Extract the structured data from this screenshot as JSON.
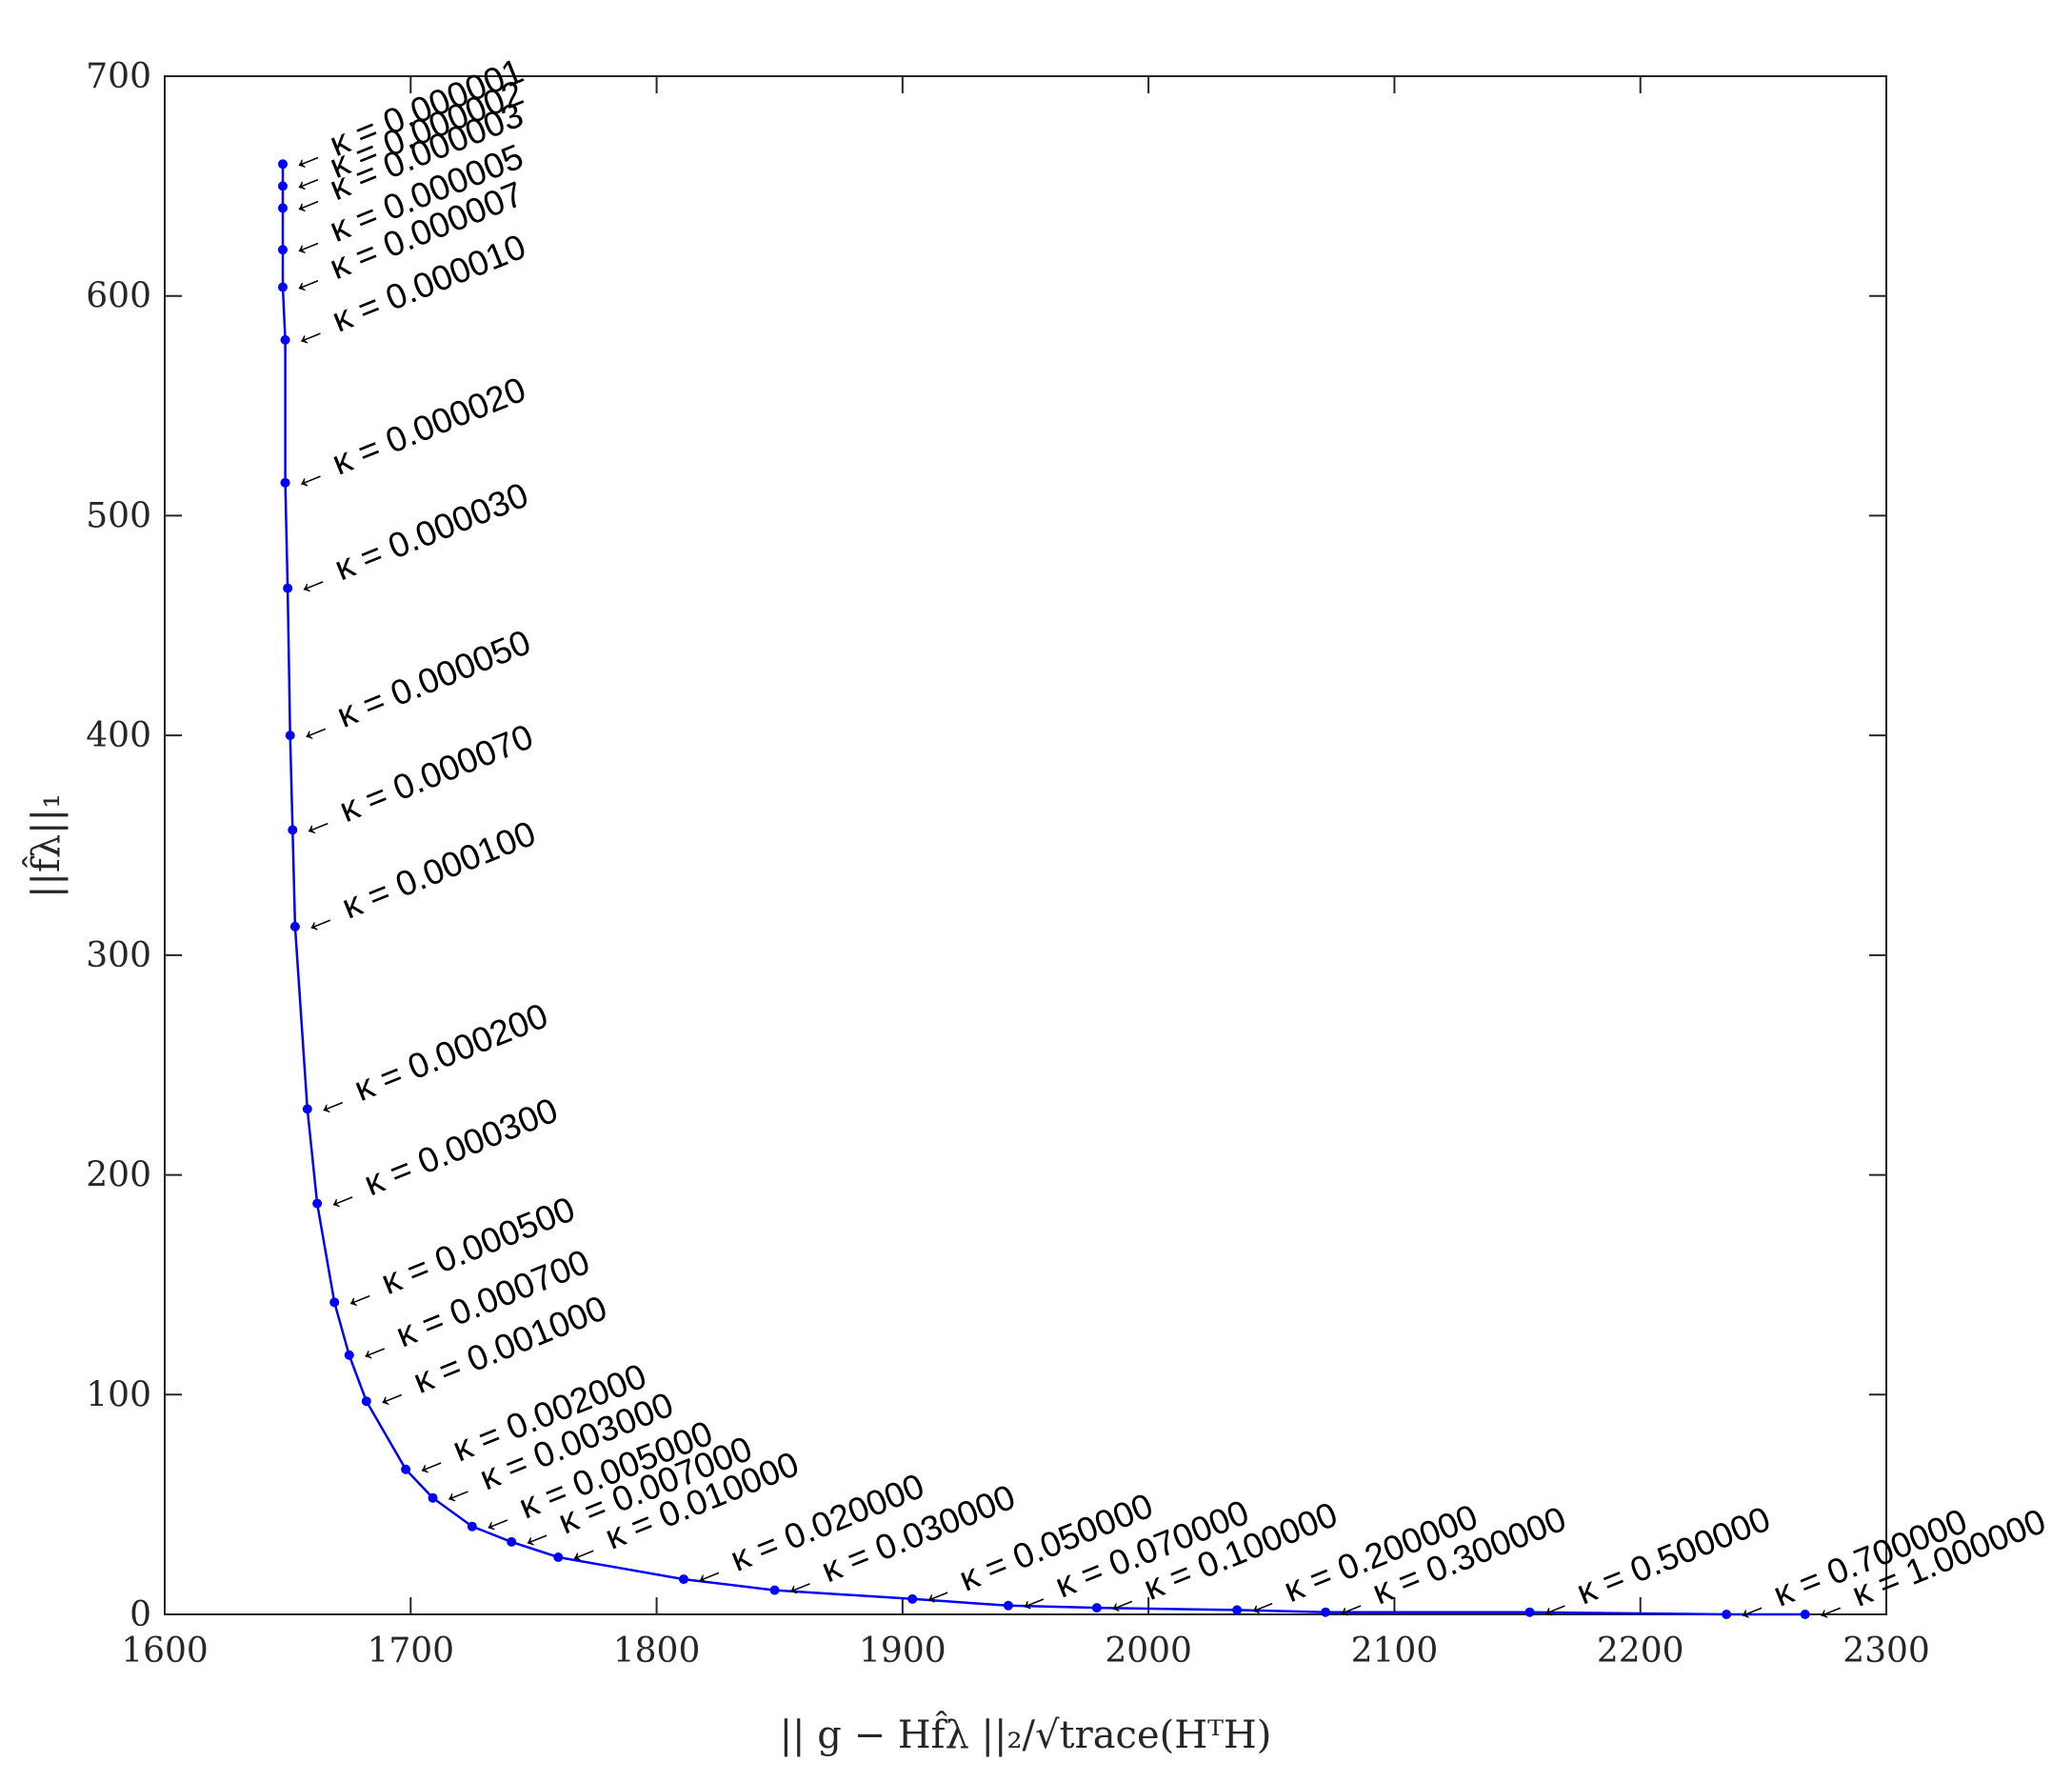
{
  "chart_data": {
    "type": "line",
    "title": "",
    "xlabel": "|| g − Hf̂λ ||₂/√trace(HᵀH)",
    "ylabel": "||f̂λ||₁",
    "xlim": [
      1600,
      2300
    ],
    "ylim": [
      0,
      700
    ],
    "xticks": [
      "1600",
      "1700",
      "1800",
      "1900",
      "2000",
      "2100",
      "2200",
      "2300"
    ],
    "yticks": [
      "0",
      "100",
      "200",
      "300",
      "400",
      "500",
      "600",
      "700"
    ],
    "grid": false,
    "line_color": "#0000ff",
    "points": [
      {
        "x": 1648,
        "y": 660,
        "label": "← κ = 0.000001"
      },
      {
        "x": 1648,
        "y": 650,
        "label": "← κ = 0.000002"
      },
      {
        "x": 1648,
        "y": 640,
        "label": "← κ = 0.000003"
      },
      {
        "x": 1648,
        "y": 621,
        "label": "← κ = 0.000005"
      },
      {
        "x": 1648,
        "y": 604,
        "label": "← κ = 0.000007"
      },
      {
        "x": 1649,
        "y": 580,
        "label": "← κ = 0.000010"
      },
      {
        "x": 1649,
        "y": 515,
        "label": "← κ = 0.000020"
      },
      {
        "x": 1650,
        "y": 467,
        "label": "← κ = 0.000030"
      },
      {
        "x": 1651,
        "y": 400,
        "label": "← κ = 0.000050"
      },
      {
        "x": 1652,
        "y": 357,
        "label": "← κ = 0.000070"
      },
      {
        "x": 1653,
        "y": 313,
        "label": "← κ = 0.000100"
      },
      {
        "x": 1658,
        "y": 230,
        "label": "← κ = 0.000200"
      },
      {
        "x": 1662,
        "y": 187,
        "label": "← κ = 0.000300"
      },
      {
        "x": 1669,
        "y": 142,
        "label": "← κ = 0.000500"
      },
      {
        "x": 1675,
        "y": 118,
        "label": "← κ = 0.000700"
      },
      {
        "x": 1682,
        "y": 97,
        "label": "← κ = 0.001000"
      },
      {
        "x": 1698,
        "y": 66,
        "label": "← κ = 0.002000"
      },
      {
        "x": 1709,
        "y": 53,
        "label": "← κ = 0.003000"
      },
      {
        "x": 1725,
        "y": 40,
        "label": "← κ = 0.005000"
      },
      {
        "x": 1741,
        "y": 33,
        "label": "← κ = 0.007000"
      },
      {
        "x": 1760,
        "y": 26,
        "label": "← κ = 0.010000"
      },
      {
        "x": 1811,
        "y": 16,
        "label": "← κ = 0.020000"
      },
      {
        "x": 1848,
        "y": 11,
        "label": "← κ = 0.030000"
      },
      {
        "x": 1904,
        "y": 7,
        "label": "← κ = 0.050000"
      },
      {
        "x": 1943,
        "y": 4,
        "label": "← κ = 0.070000"
      },
      {
        "x": 1979,
        "y": 3,
        "label": "← κ = 0.100000"
      },
      {
        "x": 2036,
        "y": 2,
        "label": "← κ = 0.200000"
      },
      {
        "x": 2072,
        "y": 1,
        "label": "← κ = 0.300000"
      },
      {
        "x": 2155,
        "y": 1,
        "label": "← κ = 0.500000"
      },
      {
        "x": 2235,
        "y": 0,
        "label": "← κ = 0.700000"
      },
      {
        "x": 2267,
        "y": 0,
        "label": "← κ = 1.000000"
      }
    ]
  }
}
